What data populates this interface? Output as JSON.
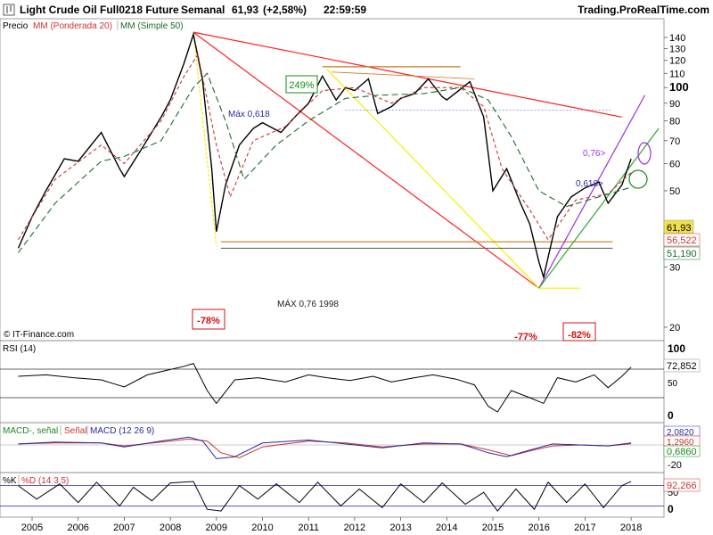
{
  "header": {
    "title": "Light Crude Oil Full0218 Future",
    "period": "Semanal",
    "price": "61,93",
    "change": "(+2,58%)",
    "time": "22:59:59",
    "site": "Trading.ProRealTime.com"
  },
  "legend_main": {
    "precio": "Precio",
    "ema": "MM (Ponderada 20)",
    "sma": "MM (Simple 50)"
  },
  "copyright": "© IT-Finance.com",
  "annotations": {
    "pct_249": "249%",
    "max_0618": "Máx 0,618",
    "max_076_1998": "MÁX 0,76 1998",
    "fib_076": "0,76>",
    "fib_0618": "0,618>",
    "pct_m78": "-78%",
    "pct_m77": "-77%",
    "pct_m82": "-82%"
  },
  "price_badges": {
    "last": "61,93",
    "ema": "56,522",
    "sma": "51,190"
  },
  "rsi_panel": {
    "label": "RSI (14)",
    "badge": "72,852"
  },
  "macd_panel": {
    "label_hist": "MACD-, señal",
    "label_signal": "Señal",
    "label_macd": "MACD (12 26 9)",
    "badge_macd": "2,0820",
    "badge_signal": "1,2960",
    "badge_hist": "0,6860"
  },
  "stoch_panel": {
    "label_k": "%K",
    "label_d": "%D (14 3 5)",
    "badge": "92,266"
  },
  "colors": {
    "price": "#000000",
    "ema": "#cc3333",
    "sma": "#1a6b2a",
    "trend_red": "#ff2020",
    "fib_yellow": "#f5f000",
    "orange": "#c87a1e",
    "purple": "#9a30e0",
    "green_line": "#2faa2f",
    "blue_dotted": "#3a4cc0",
    "badge_last": "#f2e04a"
  },
  "chart_data": [
    {
      "type": "line",
      "title": "Light Crude Oil Full0218 Future",
      "x_ticks": [
        "2005",
        "2006",
        "2007",
        "2008",
        "2009",
        "2010",
        "2011",
        "2012",
        "2013",
        "2014",
        "2015",
        "2016",
        "2017",
        "2018"
      ],
      "y_ticks": [
        20,
        30,
        40,
        50,
        60,
        70,
        80,
        90,
        100,
        110,
        120,
        130,
        140
      ],
      "ylim": [
        18,
        150
      ],
      "scale": "log",
      "series": [
        {
          "name": "Precio",
          "x": [
            2004.7,
            2005.0,
            2005.3,
            2005.7,
            2006.0,
            2006.5,
            2006.9,
            2007.0,
            2007.4,
            2007.8,
            2008.0,
            2008.3,
            2008.5,
            2008.7,
            2008.9,
            2009.0,
            2009.2,
            2009.5,
            2009.8,
            2010.0,
            2010.4,
            2010.7,
            2011.0,
            2011.3,
            2011.6,
            2011.8,
            2012.0,
            2012.3,
            2012.5,
            2012.8,
            2013.0,
            2013.3,
            2013.6,
            2013.9,
            2014.0,
            2014.3,
            2014.5,
            2014.8,
            2015.0,
            2015.3,
            2015.6,
            2015.8,
            2016.0,
            2016.1,
            2016.4,
            2016.7,
            2017.0,
            2017.3,
            2017.5,
            2017.8,
            2018.0
          ],
          "y": [
            34,
            42,
            50,
            62,
            61,
            74,
            58,
            55,
            67,
            82,
            92,
            118,
            143,
            105,
            58,
            38,
            52,
            68,
            76,
            79,
            74,
            82,
            90,
            108,
            92,
            100,
            98,
            106,
            84,
            88,
            93,
            96,
            106,
            94,
            92,
            99,
            104,
            82,
            50,
            58,
            46,
            40,
            31,
            28,
            42,
            48,
            51,
            53,
            46,
            52,
            61.93
          ]
        },
        {
          "name": "MM (Ponderada 20)",
          "x": [
            2004.7,
            2005.5,
            2006.5,
            2007.0,
            2007.8,
            2008.3,
            2008.6,
            2009.0,
            2009.3,
            2009.8,
            2010.5,
            2011.3,
            2012.0,
            2012.8,
            2013.5,
            2014.3,
            2014.8,
            2015.2,
            2015.8,
            2016.2,
            2016.8,
            2017.5,
            2018.0
          ],
          "y": [
            36,
            54,
            68,
            60,
            80,
            108,
            125,
            68,
            48,
            70,
            77,
            98,
            100,
            90,
            100,
            100,
            88,
            58,
            44,
            36,
            47,
            49,
            56.522
          ]
        },
        {
          "name": "MM (Simple 50)",
          "x": [
            2004.7,
            2005.5,
            2006.5,
            2007.0,
            2007.8,
            2008.5,
            2008.8,
            2009.2,
            2009.6,
            2010.3,
            2011.0,
            2011.8,
            2012.5,
            2013.5,
            2014.3,
            2014.9,
            2015.4,
            2016.0,
            2016.6,
            2017.3,
            2018.0
          ],
          "y": [
            33,
            46,
            61,
            63,
            70,
            100,
            110,
            80,
            54,
            68,
            80,
            93,
            95,
            96,
            100,
            92,
            72,
            50,
            45,
            48,
            51.19
          ]
        }
      ]
    },
    {
      "type": "line",
      "title": "RSI (14)",
      "ylim": [
        0,
        100
      ],
      "y_ticks": [
        0,
        50,
        100
      ],
      "levels": [
        30,
        70
      ],
      "series": [
        {
          "name": "RSI (14)",
          "x": [
            2004.7,
            2005.3,
            2005.9,
            2006.5,
            2007.0,
            2007.5,
            2007.9,
            2008.3,
            2008.5,
            2008.8,
            2009.0,
            2009.4,
            2009.9,
            2010.5,
            2011.0,
            2011.4,
            2011.9,
            2012.4,
            2012.8,
            2013.3,
            2013.7,
            2014.2,
            2014.6,
            2014.9,
            2015.1,
            2015.4,
            2015.8,
            2016.1,
            2016.4,
            2016.8,
            2017.2,
            2017.5,
            2017.8,
            2018.0
          ],
          "y": [
            60,
            62,
            58,
            55,
            45,
            62,
            68,
            74,
            78,
            40,
            22,
            55,
            58,
            52,
            62,
            58,
            54,
            60,
            52,
            58,
            62,
            56,
            48,
            18,
            10,
            40,
            30,
            22,
            58,
            52,
            62,
            44,
            60,
            72.852
          ]
        }
      ]
    },
    {
      "type": "line",
      "title": "MACD (12 26 9)",
      "y_ticks": [
        -20,
        0
      ],
      "series": [
        {
          "name": "MACD (12 26 9)",
          "x": [
            2004.7,
            2005.5,
            2006.5,
            2007.0,
            2007.8,
            2008.4,
            2008.7,
            2009.0,
            2009.4,
            2010.0,
            2011.0,
            2011.8,
            2012.6,
            2013.5,
            2014.3,
            2014.9,
            2015.3,
            2015.9,
            2016.3,
            2016.9,
            2017.5,
            2018.0
          ],
          "y": [
            1,
            3,
            2,
            -2,
            4,
            8,
            4,
            -14,
            -12,
            2,
            5,
            1,
            -3,
            2,
            1,
            -8,
            -12,
            -4,
            1,
            0,
            -1,
            2.082
          ]
        },
        {
          "name": "Señal",
          "x": [
            2004.7,
            2005.5,
            2006.5,
            2007.0,
            2007.8,
            2008.4,
            2008.8,
            2009.1,
            2009.5,
            2010.0,
            2011.0,
            2011.8,
            2012.6,
            2013.5,
            2014.3,
            2014.9,
            2015.4,
            2015.9,
            2016.3,
            2016.9,
            2017.5,
            2018.0
          ],
          "y": [
            1,
            2,
            2,
            -1,
            3,
            6,
            4,
            -8,
            -13,
            -2,
            4,
            2,
            -2,
            1,
            1,
            -5,
            -11,
            -5,
            -1,
            0,
            -1,
            1.296
          ]
        }
      ]
    },
    {
      "type": "line",
      "title": "%K %D (14 3 5)",
      "ylim": [
        0,
        100
      ],
      "y_ticks": [
        0,
        50,
        100
      ],
      "levels": [
        20,
        80
      ],
      "series": [
        {
          "name": "%K",
          "x": [
            2004.7,
            2005.1,
            2005.6,
            2006.0,
            2006.4,
            2006.9,
            2007.2,
            2007.6,
            2008.0,
            2008.5,
            2008.8,
            2009.1,
            2009.5,
            2009.9,
            2010.3,
            2010.8,
            2011.2,
            2011.7,
            2012.1,
            2012.6,
            2013.0,
            2013.5,
            2013.9,
            2014.4,
            2014.8,
            2015.1,
            2015.5,
            2015.9,
            2016.2,
            2016.6,
            2017.0,
            2017.4,
            2017.8,
            2018.0
          ],
          "y": [
            80,
            40,
            85,
            30,
            90,
            20,
            75,
            35,
            88,
            92,
            10,
            5,
            80,
            40,
            85,
            30,
            90,
            20,
            70,
            15,
            85,
            30,
            88,
            25,
            60,
            5,
            70,
            10,
            90,
            30,
            85,
            15,
            80,
            92.266
          ]
        }
      ]
    }
  ]
}
